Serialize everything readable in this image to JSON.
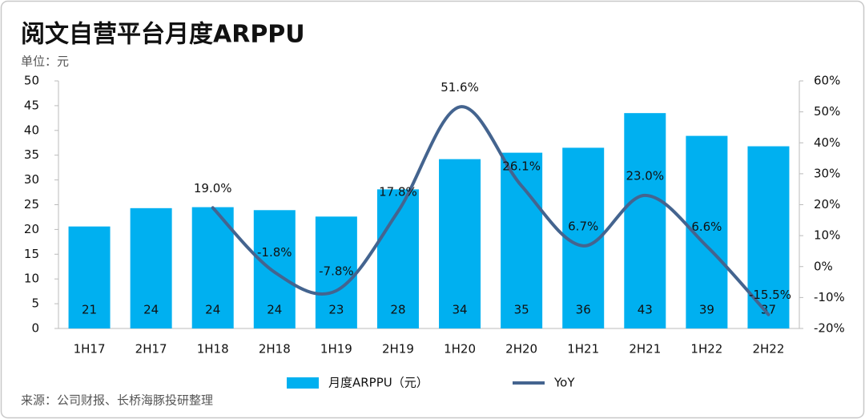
{
  "chart_data": {
    "type": "bar",
    "title": "阅文自营平台月度ARPPU",
    "subtitle": "单位：元",
    "source": "来源：公司财报、长桥海豚投研整理",
    "categories": [
      "1H17",
      "2H17",
      "1H18",
      "2H18",
      "1H19",
      "2H19",
      "1H20",
      "2H20",
      "1H21",
      "2H21",
      "1H22",
      "2H22"
    ],
    "series": [
      {
        "name": "月度ARPPU（元）",
        "type": "bar",
        "color": "#00b0f0",
        "values": [
          20.6,
          24.3,
          24.5,
          23.9,
          22.6,
          28.1,
          34.2,
          35.5,
          36.5,
          43.5,
          38.9,
          36.8
        ],
        "value_labels": [
          "21",
          "24",
          "24",
          "24",
          "23",
          "28",
          "34",
          "35",
          "36",
          "43",
          "39",
          "37"
        ]
      },
      {
        "name": "YoY",
        "type": "line",
        "axis": "y2",
        "color": "#44648f",
        "values": [
          null,
          null,
          19.0,
          -1.8,
          -7.8,
          17.8,
          51.6,
          26.1,
          6.7,
          23.0,
          6.6,
          -15.5
        ],
        "value_labels": [
          null,
          null,
          "19.0%",
          "-1.8%",
          "-7.8%",
          "17.8%",
          "51.6%",
          "26.1%",
          "6.7%",
          "23.0%",
          "6.6%",
          "-15.5%"
        ]
      }
    ],
    "ylim": [
      0,
      50
    ],
    "yticks": [
      0,
      5,
      10,
      15,
      20,
      25,
      30,
      35,
      40,
      45,
      50
    ],
    "y2lim": [
      -20,
      60
    ],
    "y2ticks": [
      {
        "value": -20,
        "label": "-20%"
      },
      {
        "value": -10,
        "label": "-10%"
      },
      {
        "value": 0,
        "label": "0%"
      },
      {
        "value": 10,
        "label": "10%"
      },
      {
        "value": 20,
        "label": "20%"
      },
      {
        "value": 30,
        "label": "30%"
      },
      {
        "value": 40,
        "label": "40%"
      },
      {
        "value": 50,
        "label": "50%"
      },
      {
        "value": 60,
        "label": "60%"
      }
    ],
    "grid": false
  }
}
